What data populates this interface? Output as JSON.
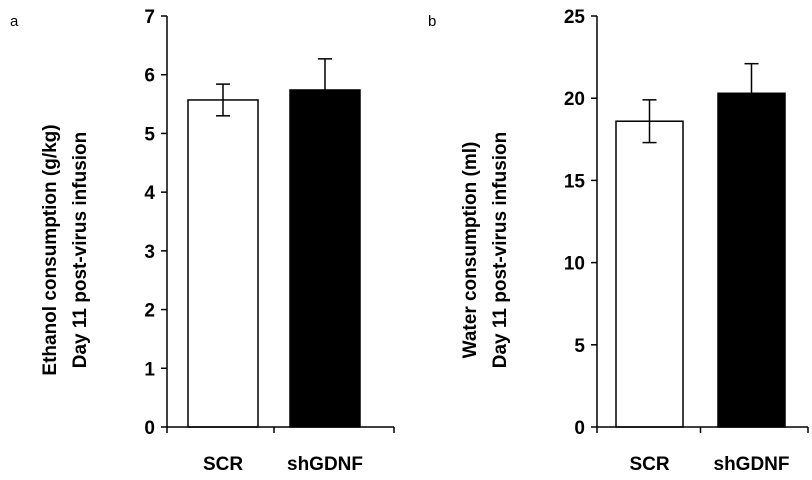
{
  "chart_data": [
    {
      "type": "bar",
      "panel_label": "a",
      "categories": [
        "SCR",
        "shGDNF"
      ],
      "values": [
        5.57,
        5.74
      ],
      "errors": [
        0.27,
        0.53
      ],
      "bar_colors": [
        "#ffffff",
        "#000000"
      ],
      "ylabel_line1": "Ethanol consumption (g/kg)",
      "ylabel_line2": "Day 11 post-virus infusion",
      "ylim": [
        0,
        7
      ],
      "yticks": [
        0,
        1,
        2,
        3,
        4,
        5,
        6,
        7
      ],
      "grid": false
    },
    {
      "type": "bar",
      "panel_label": "b",
      "categories": [
        "SCR",
        "shGDNF"
      ],
      "values": [
        18.6,
        20.3
      ],
      "errors": [
        1.3,
        1.8
      ],
      "bar_colors": [
        "#ffffff",
        "#000000"
      ],
      "ylabel_line1": "Water consumption (ml)",
      "ylabel_line2": "Day 11 post-virus infusion",
      "ylim": [
        0,
        25
      ],
      "yticks": [
        0,
        5,
        10,
        15,
        20,
        25
      ],
      "grid": false
    }
  ]
}
